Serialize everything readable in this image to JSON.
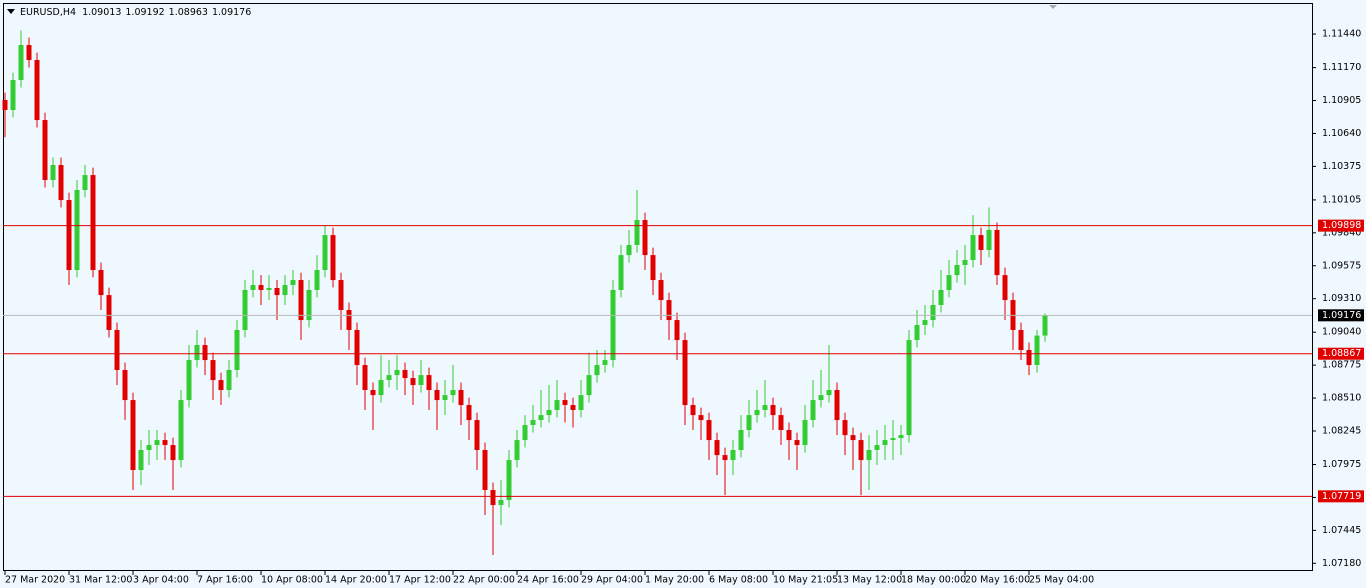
{
  "chart_data": {
    "type": "candlestick",
    "symbol": "EURUSD,H4",
    "up_color": "#32cd32",
    "down_color": "#e00000",
    "level_color": "#e00000",
    "bid_color": "#b8b8b8",
    "levels": [
      1.09898,
      1.08867,
      1.07719
    ],
    "xlim": [
      -0.25,
      163.375
    ],
    "ylim": [
      1.07126,
      1.11682
    ],
    "xticks": [
      {
        "value": 0,
        "label": "27 Mar 2020"
      },
      {
        "value": 8,
        "label": "31 Mar 12:00"
      },
      {
        "value": 16,
        "label": "3 Apr 04:00"
      },
      {
        "value": 24,
        "label": "7 Apr 16:00"
      },
      {
        "value": 32,
        "label": "10 Apr 08:00"
      },
      {
        "value": 40,
        "label": "14 Apr 20:00"
      },
      {
        "value": 48,
        "label": "17 Apr 12:00"
      },
      {
        "value": 56,
        "label": "22 Apr 00:00"
      },
      {
        "value": 64,
        "label": "24 Apr 16:00"
      },
      {
        "value": 72,
        "label": "29 Apr 04:00"
      },
      {
        "value": 80,
        "label": "1 May 20:00"
      },
      {
        "value": 88,
        "label": "6 May 08:00"
      },
      {
        "value": 96,
        "label": "10 May 21:05"
      },
      {
        "value": 104,
        "label": "13 May 12:00"
      },
      {
        "value": 112,
        "label": "18 May 00:00"
      },
      {
        "value": 120,
        "label": "20 May 16:00"
      },
      {
        "value": 128,
        "label": "25 May 04:00"
      }
    ],
    "yticks": [
      {
        "value": 1.1144,
        "label": "1.11440"
      },
      {
        "value": 1.1117,
        "label": "1.11170"
      },
      1.10905,
      {
        "value": 1.1064,
        "label": "1.10640"
      },
      1.10375,
      1.10105,
      {
        "value": 1.0984,
        "label": "1.09840"
      },
      1.09575,
      {
        "value": 1.0931,
        "label": "1.09310"
      },
      {
        "value": 1.0904,
        "label": "1.09040"
      },
      1.08775,
      {
        "value": 1.0851,
        "label": "1.08510"
      },
      1.08245,
      1.07975,
      {
        "value": 1.0771,
        "label": "1.07710"
      },
      1.07445,
      {
        "value": 1.0718,
        "label": "1.07180"
      }
    ],
    "candles": [
      [
        1.10909,
        1.10969,
        1.10609,
        1.10829
      ],
      [
        1.10829,
        1.1113,
        1.10769,
        1.1107
      ],
      [
        1.1107,
        1.1147,
        1.1101,
        1.11352
      ],
      [
        1.11352,
        1.11412,
        1.11171,
        1.11231
      ],
      [
        1.11231,
        1.11291,
        1.10688,
        1.10748
      ],
      [
        1.10748,
        1.10808,
        1.10205,
        1.10265
      ],
      [
        1.10265,
        1.10446,
        1.10205,
        1.10386
      ],
      [
        1.10386,
        1.10446,
        1.10044,
        1.10104
      ],
      [
        1.10104,
        1.10164,
        1.0942,
        1.09541
      ],
      [
        1.09541,
        1.10265,
        1.09481,
        1.10185
      ],
      [
        1.10185,
        1.10386,
        1.10125,
        1.10305
      ],
      [
        1.10305,
        1.10365,
        1.09481,
        1.09541
      ],
      [
        1.09541,
        1.09601,
        1.09219,
        1.09339
      ],
      [
        1.09339,
        1.09399,
        1.08998,
        1.09058
      ],
      [
        1.09058,
        1.09118,
        1.08615,
        1.08736
      ],
      [
        1.08736,
        1.08796,
        1.08334,
        1.08494
      ],
      [
        1.08494,
        1.08554,
        1.0777,
        1.07931
      ],
      [
        1.07931,
        1.08172,
        1.0781,
        1.08092
      ],
      [
        1.08092,
        1.08253,
        1.07971,
        1.08132
      ],
      [
        1.08132,
        1.08253,
        1.08012,
        1.08172
      ],
      [
        1.08172,
        1.08232,
        1.08012,
        1.08132
      ],
      [
        1.08132,
        1.08192,
        1.0777,
        1.08011
      ],
      [
        1.08011,
        1.08575,
        1.07951,
        1.08494
      ],
      [
        1.08494,
        1.08937,
        1.08434,
        1.08816
      ],
      [
        1.08816,
        1.09058,
        1.08756,
        1.08937
      ],
      [
        1.08937,
        1.08997,
        1.08695,
        1.08816
      ],
      [
        1.08816,
        1.08876,
        1.08494,
        1.08655
      ],
      [
        1.08655,
        1.08715,
        1.08454,
        1.08575
      ],
      [
        1.08575,
        1.08816,
        1.08515,
        1.08736
      ],
      [
        1.08736,
        1.09138,
        1.08676,
        1.09058
      ],
      [
        1.09058,
        1.0946,
        1.08998,
        1.0938
      ],
      [
        1.0938,
        1.09541,
        1.0932,
        1.0942
      ],
      [
        1.0942,
        1.095,
        1.09259,
        1.0938
      ],
      [
        1.0938,
        1.095,
        1.09299,
        1.09396
      ],
      [
        1.09396,
        1.0946,
        1.09138,
        1.09339
      ],
      [
        1.09339,
        1.095,
        1.09259,
        1.0942
      ],
      [
        1.0942,
        1.09541,
        1.09339,
        1.0946
      ],
      [
        1.0946,
        1.0952,
        1.08977,
        1.09138
      ],
      [
        1.09138,
        1.0946,
        1.09078,
        1.0938
      ],
      [
        1.0938,
        1.09661,
        1.0932,
        1.09541
      ],
      [
        1.09541,
        1.09903,
        1.09481,
        1.09822
      ],
      [
        1.09822,
        1.09882,
        1.094,
        1.0946
      ],
      [
        1.0946,
        1.0952,
        1.09058,
        1.09219
      ],
      [
        1.09219,
        1.09279,
        1.08897,
        1.09058
      ],
      [
        1.09058,
        1.09118,
        1.08615,
        1.08776
      ],
      [
        1.08776,
        1.08836,
        1.08414,
        1.08575
      ],
      [
        1.08575,
        1.08635,
        1.08253,
        1.08534
      ],
      [
        1.08534,
        1.08856,
        1.08474,
        1.08655
      ],
      [
        1.08655,
        1.08816,
        1.08595,
        1.08695
      ],
      [
        1.08695,
        1.08856,
        1.08575,
        1.08736
      ],
      [
        1.08736,
        1.08796,
        1.08534,
        1.08671
      ],
      [
        1.08671,
        1.08731,
        1.08454,
        1.08615
      ],
      [
        1.08615,
        1.08816,
        1.08555,
        1.08695
      ],
      [
        1.08695,
        1.08755,
        1.08414,
        1.08575
      ],
      [
        1.08575,
        1.08635,
        1.08253,
        1.08494
      ],
      [
        1.08494,
        1.08655,
        1.08374,
        1.08534
      ],
      [
        1.08534,
        1.08776,
        1.08474,
        1.08575
      ],
      [
        1.08575,
        1.08635,
        1.08293,
        1.08454
      ],
      [
        1.08454,
        1.08514,
        1.08172,
        1.08333
      ],
      [
        1.08333,
        1.08393,
        1.07931,
        1.08092
      ],
      [
        1.08092,
        1.08152,
        1.07569,
        1.0777
      ],
      [
        1.0777,
        1.0783,
        1.07247,
        1.07649
      ],
      [
        1.07649,
        1.0785,
        1.07488,
        1.07689
      ],
      [
        1.07689,
        1.08092,
        1.07629,
        1.08011
      ],
      [
        1.08011,
        1.08253,
        1.07951,
        1.08172
      ],
      [
        1.08172,
        1.08373,
        1.08112,
        1.08293
      ],
      [
        1.08293,
        1.08454,
        1.08233,
        1.08333
      ],
      [
        1.08333,
        1.08575,
        1.08273,
        1.08373
      ],
      [
        1.08373,
        1.08615,
        1.08313,
        1.08414
      ],
      [
        1.08414,
        1.08655,
        1.08354,
        1.08494
      ],
      [
        1.08494,
        1.08554,
        1.08313,
        1.08454
      ],
      [
        1.08454,
        1.08514,
        1.08273,
        1.08414
      ],
      [
        1.08414,
        1.08655,
        1.08354,
        1.08534
      ],
      [
        1.08534,
        1.08876,
        1.08474,
        1.08695
      ],
      [
        1.08695,
        1.08897,
        1.08635,
        1.08776
      ],
      [
        1.08776,
        1.08897,
        1.08716,
        1.08816
      ],
      [
        1.08816,
        1.0946,
        1.08756,
        1.0938
      ],
      [
        1.0938,
        1.09742,
        1.0932,
        1.09661
      ],
      [
        1.09661,
        1.09863,
        1.09601,
        1.09742
      ],
      [
        1.09742,
        1.10185,
        1.09682,
        1.09943
      ],
      [
        1.09943,
        1.10003,
        1.09541,
        1.09661
      ],
      [
        1.09661,
        1.09721,
        1.09339,
        1.0946
      ],
      [
        1.0946,
        1.0952,
        1.09138,
        1.09299
      ],
      [
        1.09299,
        1.09359,
        1.08977,
        1.09138
      ],
      [
        1.09138,
        1.09198,
        1.08816,
        1.08977
      ],
      [
        1.08977,
        1.09037,
        1.08293,
        1.08454
      ],
      [
        1.08454,
        1.08514,
        1.08253,
        1.08373
      ],
      [
        1.08373,
        1.08433,
        1.08172,
        1.08333
      ],
      [
        1.08333,
        1.08393,
        1.08011,
        1.08172
      ],
      [
        1.08172,
        1.08232,
        1.0789,
        1.08051
      ],
      [
        1.08051,
        1.08111,
        1.07729,
        1.08011
      ],
      [
        1.08011,
        1.08172,
        1.07891,
        1.08092
      ],
      [
        1.08092,
        1.08373,
        1.08032,
        1.08253
      ],
      [
        1.08253,
        1.08494,
        1.08193,
        1.08373
      ],
      [
        1.08373,
        1.08575,
        1.08313,
        1.08414
      ],
      [
        1.08414,
        1.08655,
        1.08354,
        1.08454
      ],
      [
        1.08454,
        1.08514,
        1.08253,
        1.08373
      ],
      [
        1.08373,
        1.08433,
        1.08132,
        1.08253
      ],
      [
        1.08253,
        1.08313,
        1.08011,
        1.08172
      ],
      [
        1.08172,
        1.08232,
        1.07931,
        1.08132
      ],
      [
        1.08132,
        1.08454,
        1.08072,
        1.08333
      ],
      [
        1.08333,
        1.08655,
        1.08273,
        1.08494
      ],
      [
        1.08494,
        1.08736,
        1.08434,
        1.08534
      ],
      [
        1.08534,
        1.08937,
        1.08474,
        1.08575
      ],
      [
        1.08575,
        1.08635,
        1.08212,
        1.08333
      ],
      [
        1.08333,
        1.08393,
        1.08051,
        1.08212
      ],
      [
        1.08212,
        1.08272,
        1.07931,
        1.08172
      ],
      [
        1.08172,
        1.08232,
        1.07729,
        1.08011
      ],
      [
        1.08011,
        1.08212,
        1.0777,
        1.08092
      ],
      [
        1.08092,
        1.08253,
        1.07971,
        1.08132
      ],
      [
        1.08132,
        1.08293,
        1.08012,
        1.08172
      ],
      [
        1.08172,
        1.08333,
        1.08012,
        1.08188
      ],
      [
        1.08188,
        1.08293,
        1.08052,
        1.08212
      ],
      [
        1.08212,
        1.09058,
        1.08152,
        1.08977
      ],
      [
        1.08977,
        1.09219,
        1.08917,
        1.09098
      ],
      [
        1.09098,
        1.09259,
        1.09018,
        1.09138
      ],
      [
        1.09138,
        1.0938,
        1.09078,
        1.09259
      ],
      [
        1.09259,
        1.09541,
        1.09199,
        1.0938
      ],
      [
        1.0938,
        1.09621,
        1.0932,
        1.095
      ],
      [
        1.095,
        1.09702,
        1.0944,
        1.09581
      ],
      [
        1.09581,
        1.09742,
        1.0942,
        1.09621
      ],
      [
        1.09621,
        1.09983,
        1.09561,
        1.09822
      ],
      [
        1.09822,
        1.09882,
        1.09581,
        1.09702
      ],
      [
        1.09702,
        1.10044,
        1.09642,
        1.09863
      ],
      [
        1.09863,
        1.09923,
        1.0942,
        1.095
      ],
      [
        1.095,
        1.0956,
        1.09138,
        1.09299
      ],
      [
        1.09299,
        1.09359,
        1.08897,
        1.09058
      ],
      [
        1.09058,
        1.09118,
        1.08816,
        1.08897
      ],
      [
        1.08897,
        1.08957,
        1.08695,
        1.08776
      ],
      [
        1.08776,
        1.09058,
        1.08716,
        1.09013
      ],
      [
        1.09013,
        1.09192,
        1.08963,
        1.09176
      ]
    ]
  }
}
